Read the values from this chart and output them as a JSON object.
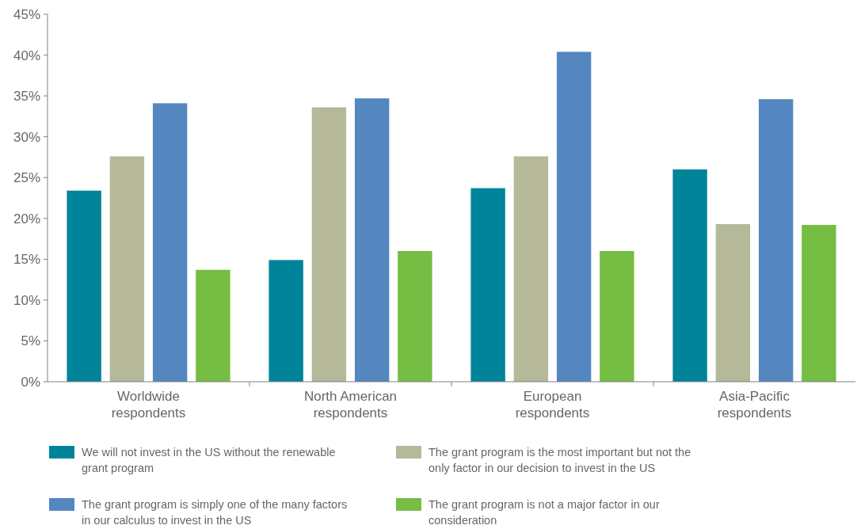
{
  "chart_data": {
    "type": "bar",
    "categories": [
      "Worldwide respondents",
      "North American respondents",
      "European respondents",
      "Asia-Pacific respondents"
    ],
    "series": [
      {
        "name": "We will not invest in the US without the renewable grant program",
        "color": "#00849a",
        "values": [
          23.4,
          14.9,
          23.7,
          26.0
        ]
      },
      {
        "name": "The grant program is the most important but not the only factor in our decision to invest in the US",
        "color": "#b5b99a",
        "values": [
          27.6,
          33.6,
          27.6,
          19.3
        ]
      },
      {
        "name": "The grant program is simply one of the many factors in our calculus to invest in the US",
        "color": "#5487bf",
        "values": [
          34.1,
          34.7,
          40.4,
          34.6
        ]
      },
      {
        "name": "The grant program is not a major factor in our consideration",
        "color": "#76bd43",
        "values": [
          13.7,
          16.0,
          16.0,
          19.2
        ]
      }
    ],
    "ylim": [
      0,
      45
    ],
    "yticks": [
      {
        "value": 0,
        "label": "0%"
      },
      {
        "value": 5,
        "label": "5%"
      },
      {
        "value": 10,
        "label": "10%"
      },
      {
        "value": 15,
        "label": "15%"
      },
      {
        "value": 20,
        "label": "20%"
      },
      {
        "value": 25,
        "label": "25%"
      },
      {
        "value": 30,
        "label": "30%"
      },
      {
        "value": 35,
        "label": "35%"
      },
      {
        "value": 40,
        "label": "40%"
      },
      {
        "value": 45,
        "label": "45%"
      }
    ],
    "grid": false,
    "legend": "bottom"
  }
}
